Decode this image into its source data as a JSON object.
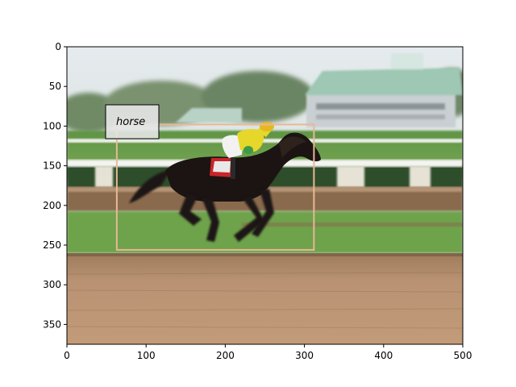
{
  "axes": {
    "x_ticks": [
      0,
      100,
      200,
      300,
      400,
      500
    ],
    "y_ticks": [
      0,
      50,
      100,
      150,
      200,
      250,
      300,
      350
    ],
    "xlim": [
      0,
      500
    ],
    "ylim": [
      375,
      0
    ],
    "y_inverted": true
  },
  "detection": {
    "label": "horse",
    "box": {
      "x1": 63,
      "y1": 98,
      "x2": 312,
      "y2": 256
    },
    "box_color": "#e8b896",
    "label_bg": "#e6e6e6"
  },
  "scene_colors": {
    "sky": "#dfe6ea",
    "grass": "#6a9e4a",
    "dirt": "#b58c66",
    "rail": "#f0f0f0",
    "horse": "#1b1412",
    "jockey_silk": "#e6d72a"
  }
}
